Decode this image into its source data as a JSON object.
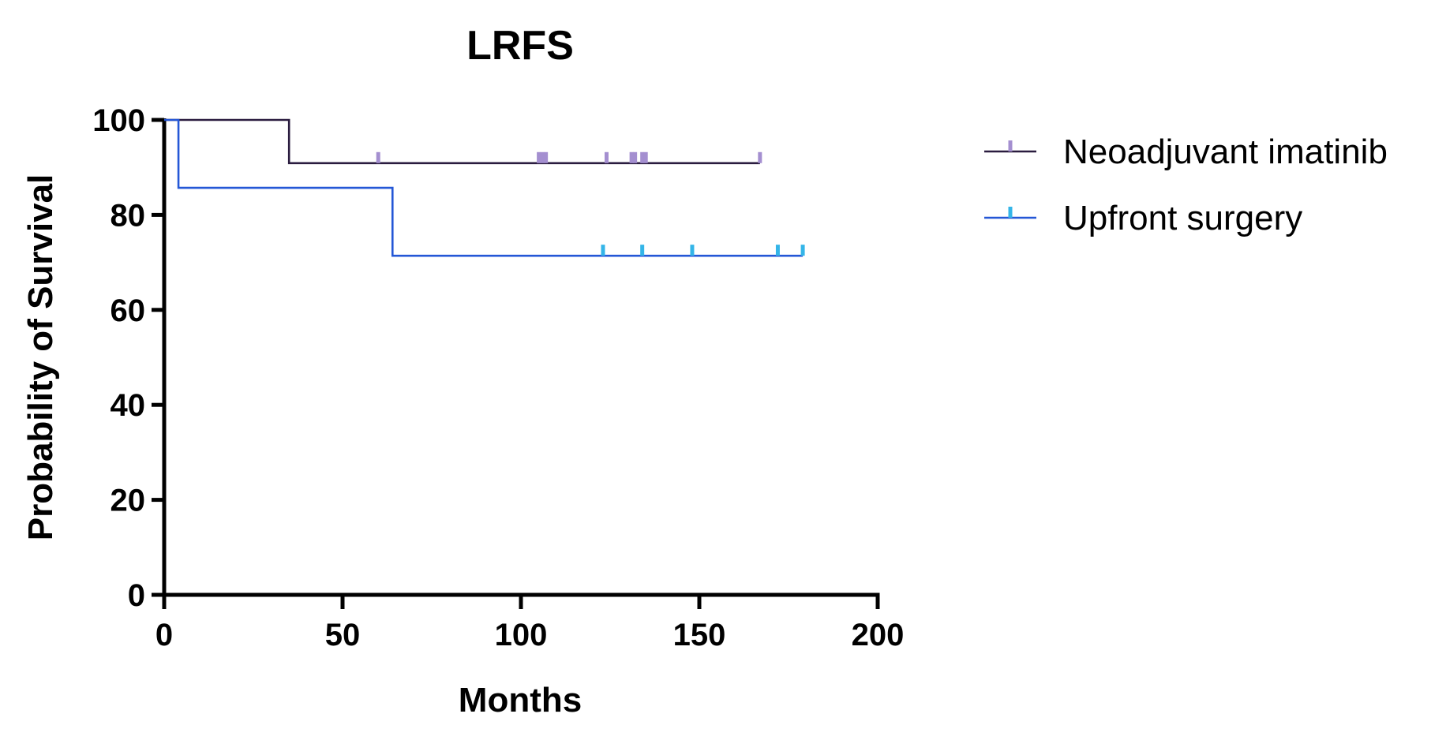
{
  "chart_data": {
    "type": "line",
    "subtype": "kaplan-meier-step",
    "title": "LRFS",
    "xlabel": "Months",
    "ylabel": "Probability of Survival",
    "xlim": [
      0,
      200
    ],
    "ylim": [
      0,
      100
    ],
    "xticks": [
      0,
      50,
      100,
      150,
      200
    ],
    "yticks": [
      0,
      20,
      40,
      60,
      80,
      100
    ],
    "grid": false,
    "legend_position": "right",
    "series": [
      {
        "name": "Neoadjuvant imatinib",
        "color": "#2a1c3f",
        "censor_color": "#a48fd0",
        "steps": [
          [
            0,
            100
          ],
          [
            35,
            100
          ],
          [
            35,
            90.9
          ],
          [
            167,
            90.9
          ]
        ],
        "censored": [
          60,
          105,
          106,
          107,
          124,
          131,
          132,
          134,
          135,
          167
        ]
      },
      {
        "name": "Upfront surgery",
        "color": "#2457d6",
        "censor_color": "#34b5e8",
        "steps": [
          [
            0,
            100
          ],
          [
            4,
            100
          ],
          [
            4,
            85.7
          ],
          [
            64,
            85.7
          ],
          [
            64,
            71.4
          ],
          [
            179,
            71.4
          ]
        ],
        "censored": [
          123,
          134,
          148,
          172,
          179
        ]
      }
    ]
  }
}
